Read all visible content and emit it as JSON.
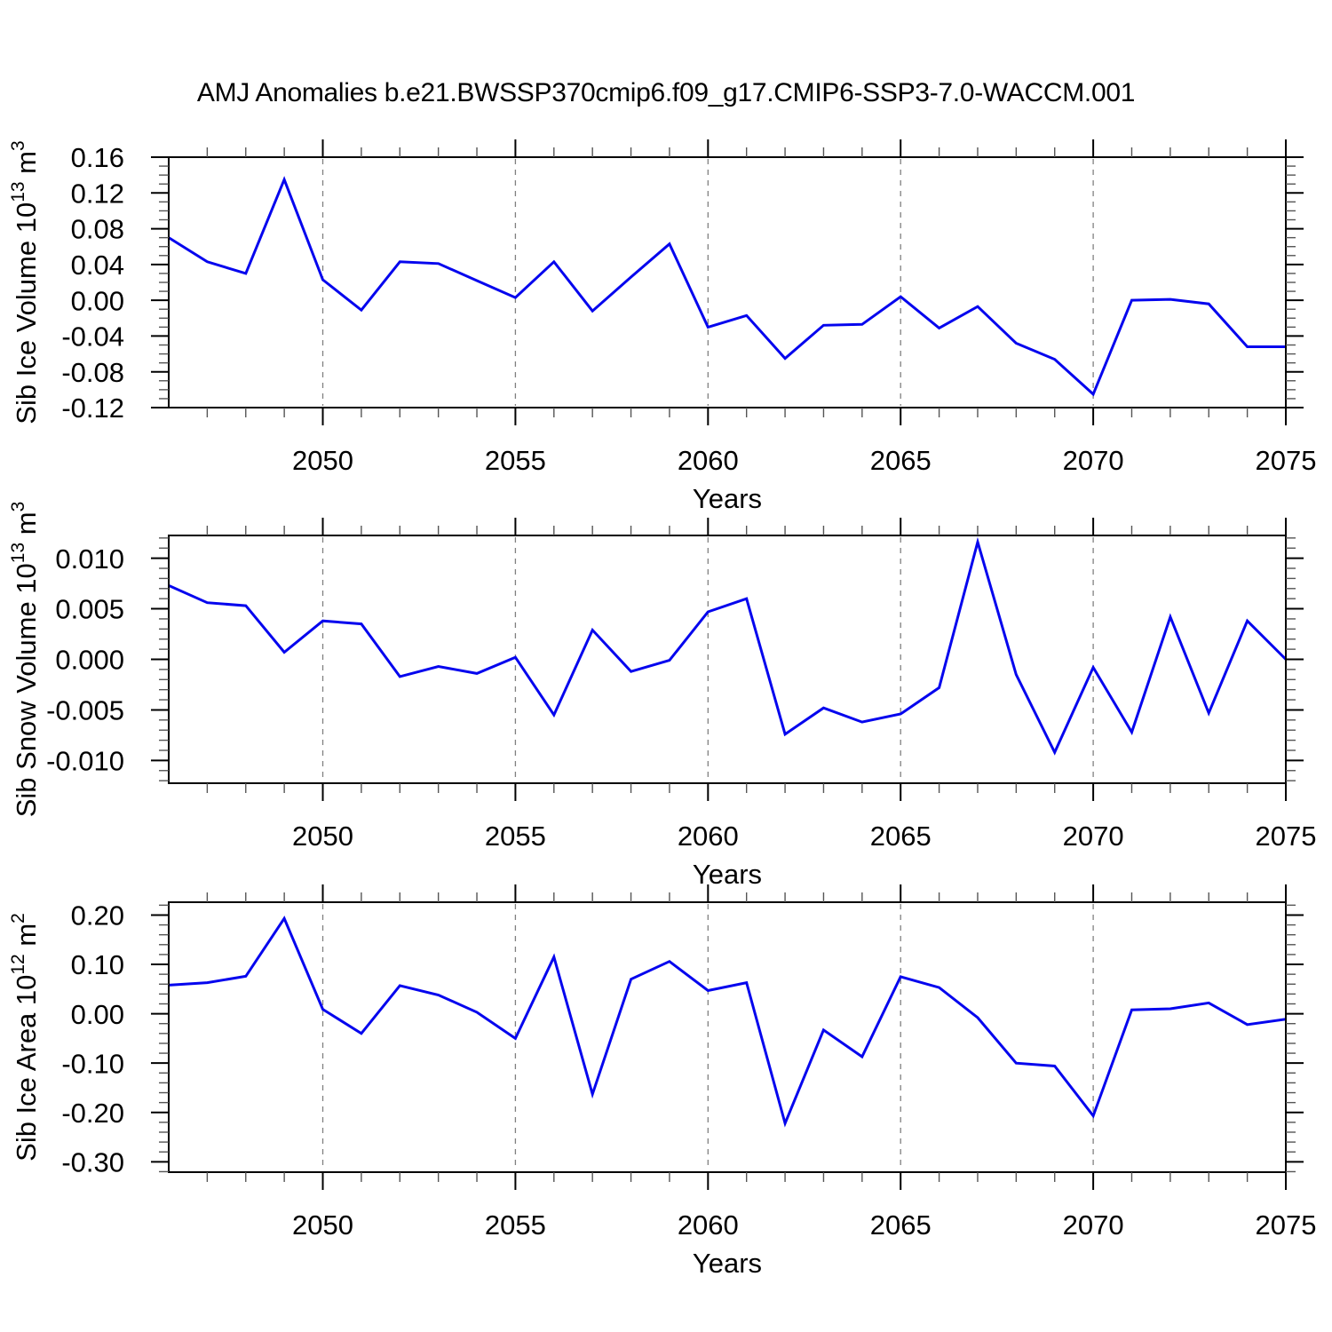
{
  "figure": {
    "title": "AMJ Anomalies b.e21.BWSSP370cmip6.f09_g17.CMIP6-SSP3-7.0-WACCM.001"
  },
  "colors": {
    "line": "#0505EE",
    "grid": "#808080",
    "axis": "#000000",
    "minor_tick": "#555555",
    "background": "#ffffff"
  },
  "chart_data": [
    {
      "id": "sib-ice-volume",
      "type": "line",
      "ylabel_text": "Sib Ice Volume 10^13 m^3",
      "ylabel_parts": [
        {
          "text": "Sib Ice Volume 10"
        },
        {
          "text": "13",
          "sup": true
        },
        {
          "text": " m"
        },
        {
          "text": "3",
          "sup": true
        }
      ],
      "xlabel": "Years",
      "xlim": [
        2046,
        2075
      ],
      "ylim": [
        -0.12,
        0.16
      ],
      "xticks_major": [
        2050,
        2055,
        2060,
        2065,
        2070,
        2075
      ],
      "xtick_labels": [
        "2050",
        "2055",
        "2060",
        "2065",
        "2070",
        "2075"
      ],
      "gridline_xs": [
        2050,
        2055,
        2060,
        2065,
        2070
      ],
      "yticks": [
        {
          "v": 0.16,
          "label": "0.16"
        },
        {
          "v": 0.12,
          "label": "0.12"
        },
        {
          "v": 0.08,
          "label": "0.08"
        },
        {
          "v": 0.04,
          "label": "0.04"
        },
        {
          "v": 0.0,
          "label": "0.00"
        },
        {
          "v": -0.04,
          "label": "-0.04"
        },
        {
          "v": -0.08,
          "label": "-0.08"
        },
        {
          "v": -0.12,
          "label": "-0.12"
        }
      ],
      "y_minor_step": 0.01,
      "x": [
        2046,
        2047,
        2048,
        2049,
        2050,
        2051,
        2052,
        2053,
        2054,
        2055,
        2056,
        2057,
        2058,
        2059,
        2060,
        2061,
        2062,
        2063,
        2064,
        2065,
        2066,
        2067,
        2068,
        2069,
        2070,
        2071,
        2072,
        2073,
        2074,
        2075
      ],
      "values": [
        0.07,
        0.043,
        0.03,
        0.135,
        0.023,
        -0.011,
        0.043,
        0.041,
        0.022,
        0.003,
        0.043,
        -0.012,
        0.026,
        0.063,
        -0.03,
        -0.017,
        -0.065,
        -0.028,
        -0.027,
        0.004,
        -0.031,
        -0.007,
        -0.048,
        -0.066,
        -0.105,
        0.0,
        0.001,
        -0.004,
        -0.052,
        -0.052
      ]
    },
    {
      "id": "sib-snow-volume",
      "type": "line",
      "ylabel_text": "Sib Snow Volume 10^13 m^3",
      "ylabel_parts": [
        {
          "text": "Sib Snow Volume 10"
        },
        {
          "text": "13",
          "sup": true
        },
        {
          "text": " m"
        },
        {
          "text": "3",
          "sup": true
        }
      ],
      "xlabel": "Years",
      "xlim": [
        2046,
        2075
      ],
      "ylim": [
        -0.01225,
        0.01225
      ],
      "xticks_major": [
        2050,
        2055,
        2060,
        2065,
        2070,
        2075
      ],
      "xtick_labels": [
        "2050",
        "2055",
        "2060",
        "2065",
        "2070",
        "2075"
      ],
      "gridline_xs": [
        2050,
        2055,
        2060,
        2065,
        2070
      ],
      "yticks": [
        {
          "v": 0.01,
          "label": "0.010"
        },
        {
          "v": 0.005,
          "label": "0.005"
        },
        {
          "v": 0.0,
          "label": "0.000"
        },
        {
          "v": -0.005,
          "label": "-0.005"
        },
        {
          "v": -0.01,
          "label": "-0.010"
        }
      ],
      "y_minor_step": 0.001,
      "x": [
        2046,
        2047,
        2048,
        2049,
        2050,
        2051,
        2052,
        2053,
        2054,
        2055,
        2056,
        2057,
        2058,
        2059,
        2060,
        2061,
        2062,
        2063,
        2064,
        2065,
        2066,
        2067,
        2068,
        2069,
        2070,
        2071,
        2072,
        2073,
        2074,
        2075
      ],
      "values": [
        0.0073,
        0.0056,
        0.0053,
        0.0007,
        0.0038,
        0.0035,
        -0.0017,
        -0.0007,
        -0.0014,
        0.0002,
        -0.0055,
        0.0029,
        -0.0012,
        -0.0001,
        0.0047,
        0.006,
        -0.0074,
        -0.0048,
        -0.0062,
        -0.0054,
        -0.0028,
        0.0116,
        -0.0015,
        -0.0092,
        -0.0008,
        -0.0072,
        0.0042,
        -0.0053,
        0.0038,
        0.0
      ]
    },
    {
      "id": "sib-ice-area",
      "type": "line",
      "ylabel_text": "Sib Ice Area 10^12 m^2",
      "ylabel_parts": [
        {
          "text": "Sib Ice Area 10"
        },
        {
          "text": "12",
          "sup": true
        },
        {
          "text": " m"
        },
        {
          "text": "2",
          "sup": true
        }
      ],
      "xlabel": "Years",
      "xlim": [
        2046,
        2075
      ],
      "ylim": [
        -0.321,
        0.226
      ],
      "xticks_major": [
        2050,
        2055,
        2060,
        2065,
        2070,
        2075
      ],
      "xtick_labels": [
        "2050",
        "2055",
        "2060",
        "2065",
        "2070",
        "2075"
      ],
      "gridline_xs": [
        2050,
        2055,
        2060,
        2065,
        2070
      ],
      "yticks": [
        {
          "v": 0.2,
          "label": "0.20"
        },
        {
          "v": 0.1,
          "label": "0.10"
        },
        {
          "v": 0.0,
          "label": "0.00"
        },
        {
          "v": -0.1,
          "label": "-0.10"
        },
        {
          "v": -0.2,
          "label": "-0.20"
        },
        {
          "v": -0.3,
          "label": "-0.30"
        }
      ],
      "y_minor_step": 0.02,
      "x": [
        2046,
        2047,
        2048,
        2049,
        2050,
        2051,
        2052,
        2053,
        2054,
        2055,
        2056,
        2057,
        2058,
        2059,
        2060,
        2061,
        2062,
        2063,
        2064,
        2065,
        2066,
        2067,
        2068,
        2069,
        2070,
        2071,
        2072,
        2073,
        2074,
        2075
      ],
      "values": [
        0.058,
        0.063,
        0.076,
        0.193,
        0.009,
        -0.04,
        0.057,
        0.038,
        0.003,
        -0.05,
        0.115,
        -0.163,
        0.07,
        0.106,
        0.047,
        0.063,
        -0.222,
        -0.033,
        -0.087,
        0.075,
        0.053,
        -0.008,
        -0.1,
        -0.106,
        -0.207,
        0.008,
        0.01,
        0.022,
        -0.022,
        -0.011
      ]
    }
  ]
}
